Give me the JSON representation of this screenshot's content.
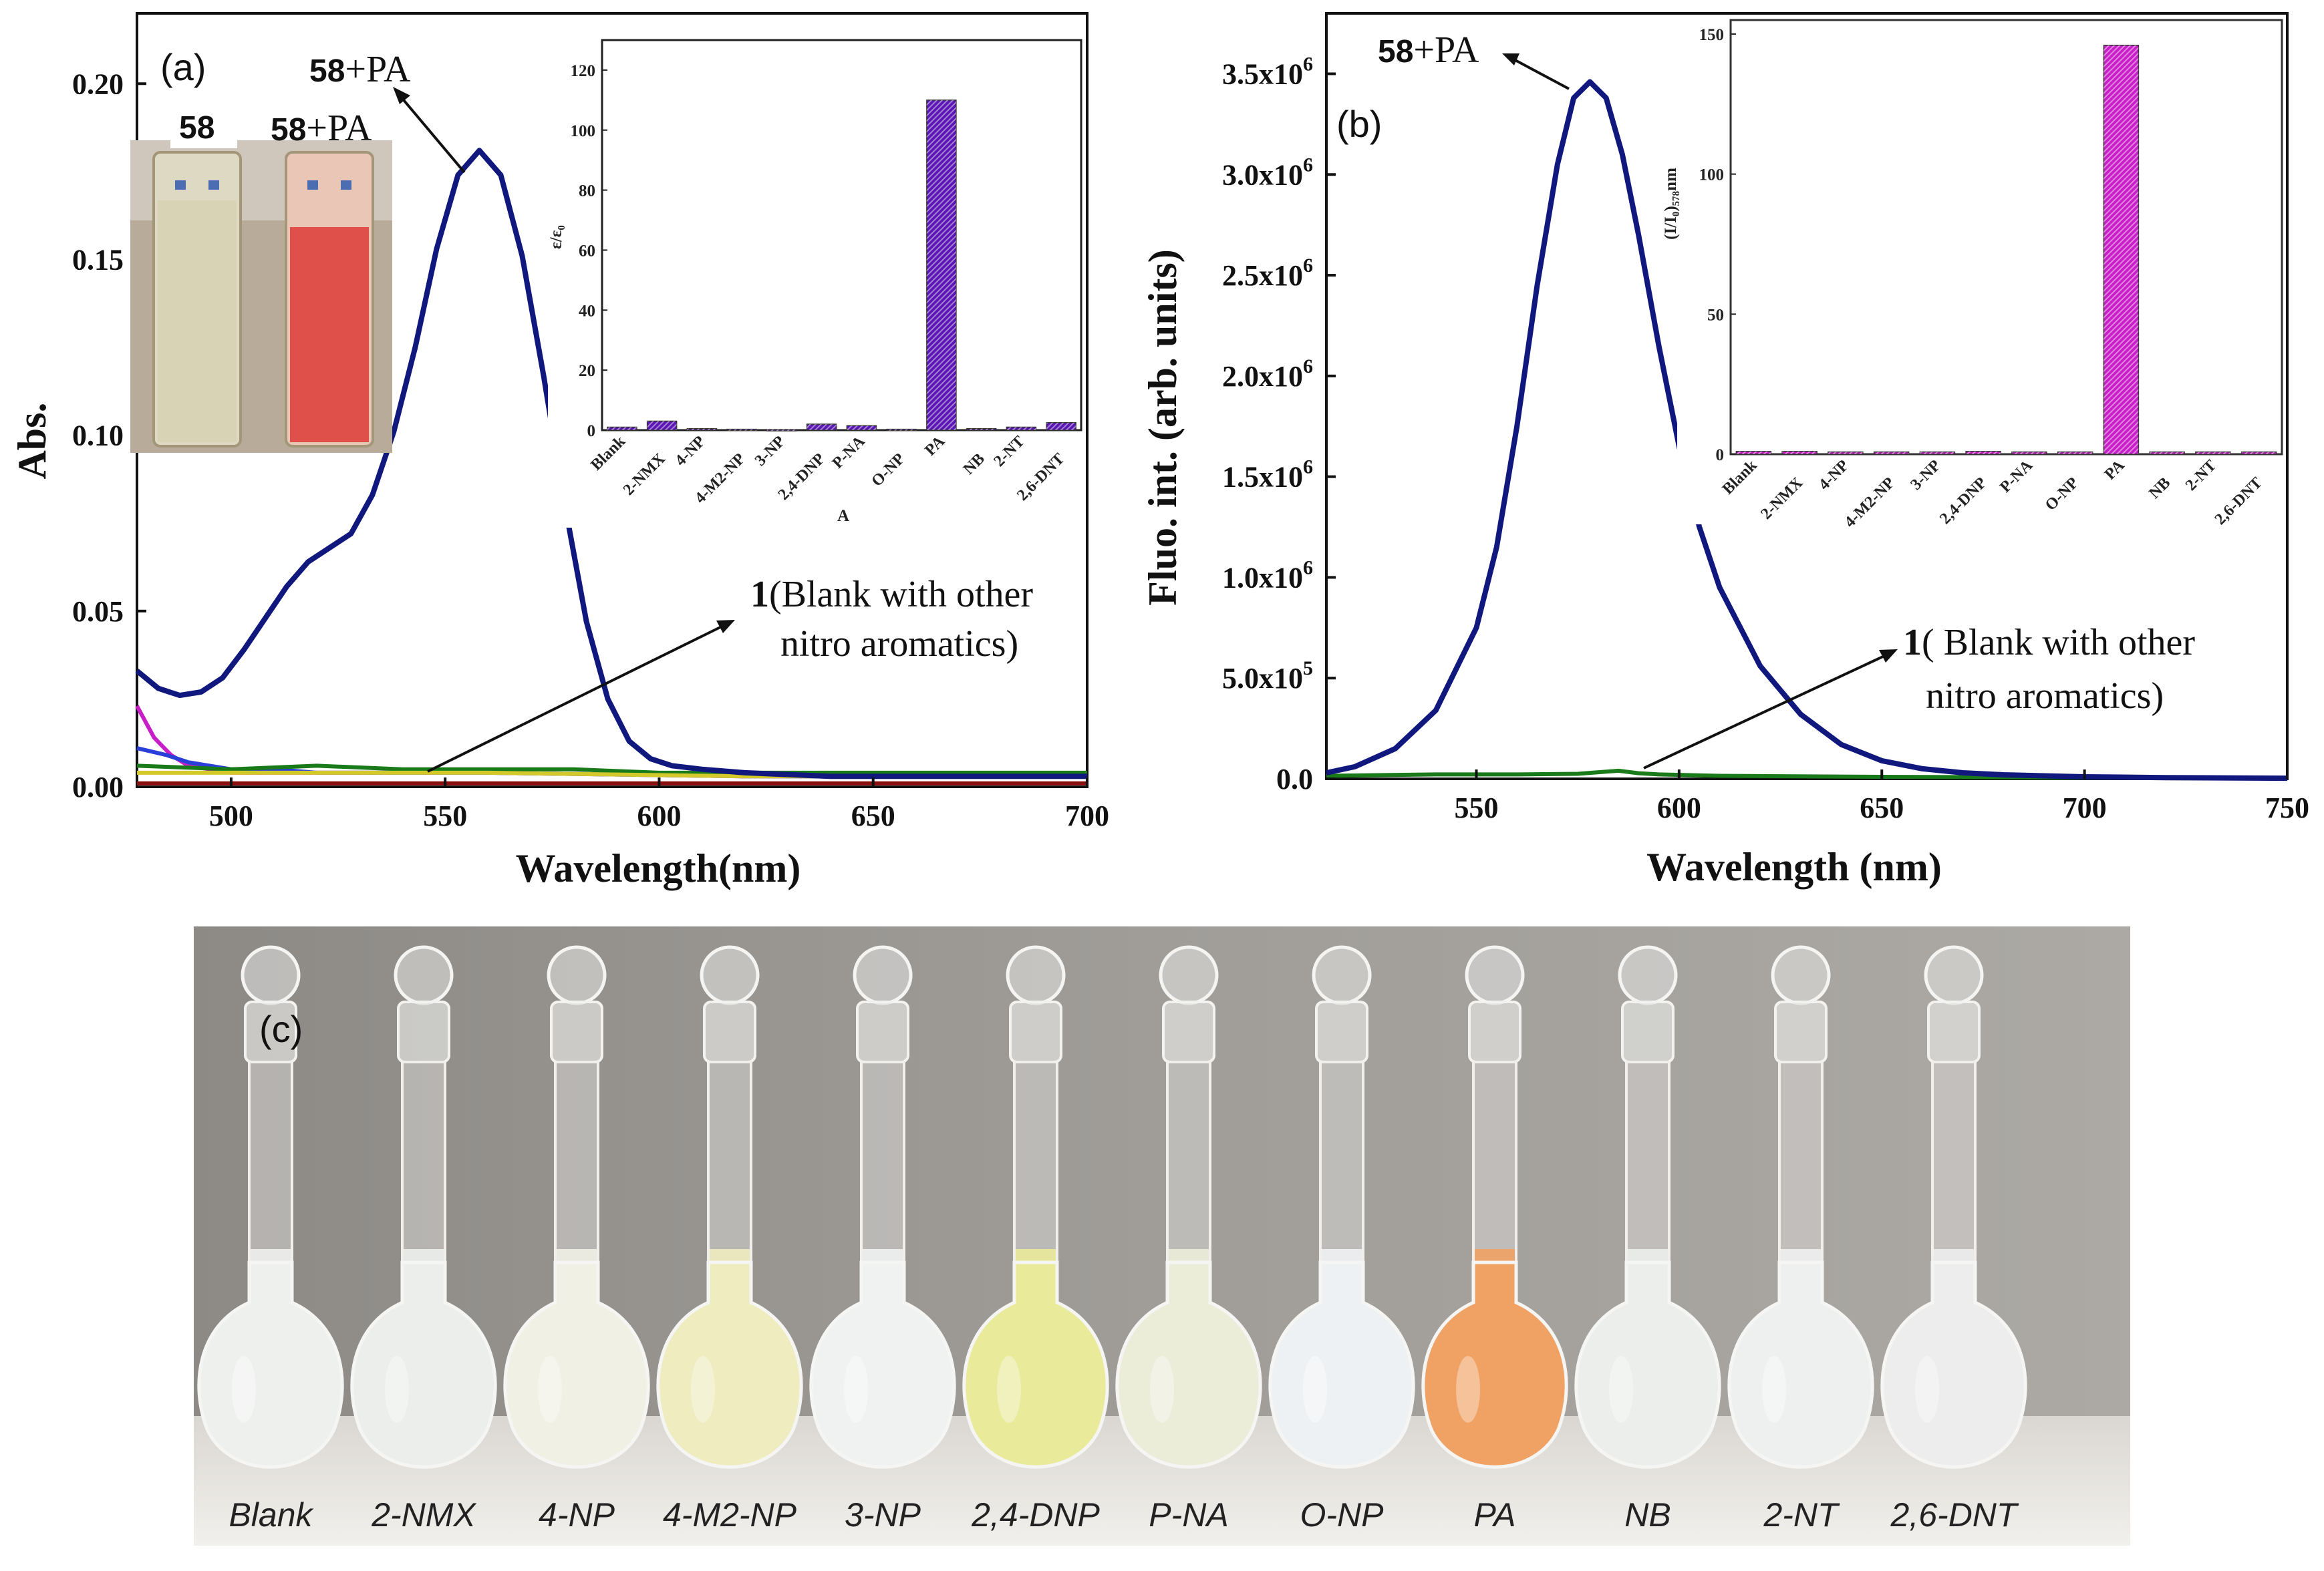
{
  "colors": {
    "blue": "#10187e",
    "purple": "#5b17b5",
    "magenta": "#c81ec8",
    "green": "#197a19",
    "red": "#8b1010",
    "yellow": "#d3c92a"
  },
  "chart_data": [
    {
      "panel": "(a)",
      "type": "line",
      "xlabel": "Wavelength(nm)",
      "ylabel": "Abs.",
      "xlim": [
        478,
        700
      ],
      "ylim": [
        0,
        0.22
      ],
      "xticks": [
        500,
        550,
        600,
        650,
        700
      ],
      "yticks": [
        0.0,
        0.05,
        0.1,
        0.15,
        0.2
      ],
      "ytick_labels": [
        "0.00",
        "0.05",
        "0.10",
        "0.15",
        "0.20"
      ],
      "series": [
        {
          "name": "58+PA",
          "color": "#10187e",
          "x": [
            478,
            483,
            488,
            493,
            498,
            503,
            508,
            513,
            518,
            523,
            528,
            533,
            538,
            543,
            548,
            553,
            558,
            563,
            568,
            573,
            578,
            583,
            588,
            593,
            598,
            603,
            610,
            620,
            640,
            660,
            680,
            700
          ],
          "y": [
            0.033,
            0.028,
            0.026,
            0.027,
            0.031,
            0.039,
            0.048,
            0.057,
            0.064,
            0.068,
            0.072,
            0.083,
            0.101,
            0.125,
            0.153,
            0.174,
            0.181,
            0.174,
            0.151,
            0.117,
            0.08,
            0.047,
            0.025,
            0.013,
            0.008,
            0.006,
            0.005,
            0.004,
            0.003,
            0.003,
            0.003,
            0.003
          ]
        },
        {
          "name": "blank-magenta",
          "color": "#c81ec8",
          "x": [
            478,
            482,
            486,
            490,
            495,
            500,
            510,
            520,
            560,
            620,
            700
          ],
          "y": [
            0.023,
            0.014,
            0.009,
            0.006,
            0.005,
            0.004,
            0.004,
            0.004,
            0.004,
            0.003,
            0.003
          ]
        },
        {
          "name": "blank-blue",
          "color": "#2a3fd8",
          "x": [
            478,
            485,
            490,
            500,
            510,
            520,
            560,
            620,
            700
          ],
          "y": [
            0.011,
            0.009,
            0.007,
            0.005,
            0.005,
            0.004,
            0.004,
            0.003,
            0.003
          ]
        },
        {
          "name": "blank-green",
          "color": "#197a19",
          "x": [
            478,
            500,
            520,
            540,
            560,
            580,
            600,
            640,
            700
          ],
          "y": [
            0.006,
            0.005,
            0.006,
            0.005,
            0.005,
            0.005,
            0.004,
            0.004,
            0.004
          ]
        },
        {
          "name": "blank-yellow",
          "color": "#d3c92a",
          "x": [
            478,
            520,
            560,
            620,
            700
          ],
          "y": [
            0.004,
            0.004,
            0.004,
            0.003,
            0.003
          ]
        },
        {
          "name": "blank-red",
          "color": "#8b1010",
          "x": [
            478,
            520,
            560,
            620,
            700
          ],
          "y": [
            0.001,
            0.001,
            0.001,
            0.001,
            0.001
          ]
        }
      ],
      "annotations": {
        "peak_label_num": "58",
        "peak_label_rest": "+PA",
        "blank_num": "1",
        "blank_line1": "(Blank with other",
        "blank_line2": "nitro aromatics)",
        "vial_left": "58",
        "vial_right_num": "58",
        "vial_right_rest": "+PA"
      },
      "inset": {
        "type": "bar",
        "ylabel": "ε/ε₀",
        "xlabel": "A",
        "ylim": [
          0,
          130
        ],
        "yticks": [
          0,
          20,
          40,
          60,
          80,
          100,
          120
        ],
        "color": "#5b17b5",
        "categories": [
          "Blank",
          "2-NMX",
          "4-NP",
          "4-M2-NP",
          "3-NP",
          "2,4-DNP",
          "P-NA",
          "O-NP",
          "PA",
          "NB",
          "2-NT",
          "2,6-DNT"
        ],
        "values": [
          1,
          3,
          0.5,
          0.3,
          0.2,
          2,
          1.5,
          0.3,
          110,
          0.5,
          1,
          2.5
        ]
      }
    },
    {
      "panel": "(b)",
      "type": "line",
      "xlabel": "Wavelength (nm)",
      "ylabel": "Fluo. int. (arb. units)",
      "xlim": [
        513,
        750
      ],
      "ylim": [
        0,
        3800000
      ],
      "xticks": [
        550,
        600,
        650,
        700,
        750
      ],
      "yticks": [
        0,
        500000,
        1000000,
        1500000,
        2000000,
        2500000,
        3000000,
        3500000
      ],
      "ytick_labels": [
        {
          "base": "0.0",
          "exp": ""
        },
        {
          "base": "5.0x10",
          "exp": "5"
        },
        {
          "base": "1.0x10",
          "exp": "6"
        },
        {
          "base": "1.5x10",
          "exp": "6"
        },
        {
          "base": "2.0x10",
          "exp": "6"
        },
        {
          "base": "2.5x10",
          "exp": "6"
        },
        {
          "base": "3.0x10",
          "exp": "6"
        },
        {
          "base": "3.5x10",
          "exp": "6"
        }
      ],
      "series": [
        {
          "name": "58+PA",
          "color": "#10187e",
          "x": [
            513,
            520,
            530,
            540,
            550,
            555,
            560,
            565,
            570,
            574,
            578,
            582,
            586,
            590,
            595,
            600,
            605,
            610,
            620,
            630,
            640,
            650,
            660,
            670,
            680,
            690,
            700,
            720,
            750
          ],
          "y": [
            30000,
            60000,
            150000,
            340000,
            750000,
            1150000,
            1750000,
            2450000,
            3050000,
            3380000,
            3460000,
            3380000,
            3100000,
            2700000,
            2150000,
            1650000,
            1250000,
            950000,
            560000,
            320000,
            170000,
            90000,
            50000,
            30000,
            20000,
            15000,
            10000,
            6000,
            3000
          ]
        },
        {
          "name": "blank-green",
          "color": "#197a19",
          "x": [
            513,
            540,
            560,
            575,
            585,
            590,
            595,
            610,
            650,
            700,
            750
          ],
          "y": [
            15000,
            22000,
            22000,
            25000,
            40000,
            28000,
            22000,
            15000,
            10000,
            6000,
            4000
          ]
        }
      ],
      "annotations": {
        "peak_label_num": "58",
        "peak_label_rest": "+PA",
        "blank_num": "1",
        "blank_line1": "( Blank with other",
        "blank_line2": "nitro aromatics)"
      },
      "inset": {
        "type": "bar",
        "ylabel": "(I/I₀)₅₇₈nm",
        "ylim": [
          0,
          155
        ],
        "yticks": [
          0,
          50,
          100,
          150
        ],
        "color": "#c81ec8",
        "categories": [
          "Blank",
          "2-NMX",
          "4-NP",
          "4-M2-NP",
          "3-NP",
          "2,4-DNP",
          "P-NA",
          "O-NP",
          "PA",
          "NB",
          "2-NT",
          "2,6-DNT"
        ],
        "values": [
          1,
          1,
          0.8,
          0.8,
          0.8,
          1,
          0.8,
          0.8,
          146,
          0.8,
          0.8,
          0.8
        ]
      }
    }
  ],
  "photo_c": {
    "panel_tag": "(c)",
    "flasks": [
      "Blank",
      "2-NMX",
      "4-NP",
      "4-M2-NP",
      "3-NP",
      "2,4-DNP",
      "P-NA",
      "O-NP",
      "PA",
      "NB",
      "2-NT",
      "2,6-DNT"
    ],
    "liquid_colors": [
      "#eef0ee",
      "#eceeec",
      "#f1f0e4",
      "#efecbf",
      "#f0f2f2",
      "#e9ea9a",
      "#ecedd9",
      "#eef1f3",
      "#f0a164",
      "#eceeec",
      "#eef0f0",
      "#ededed"
    ]
  }
}
